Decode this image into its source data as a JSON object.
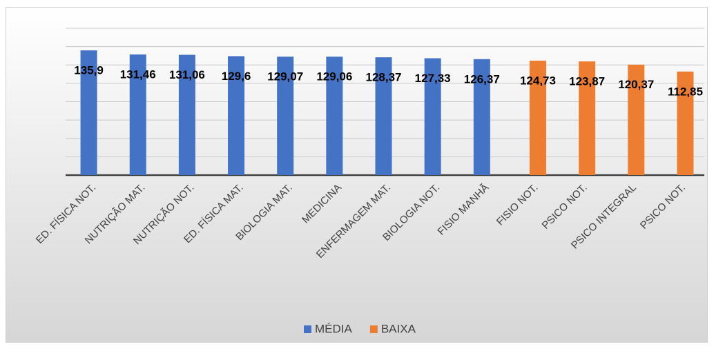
{
  "chart_data": {
    "type": "bar",
    "categories": [
      "ED. FÍSICA NOT.",
      "NUTRIÇÃO MAT.",
      "NUTRIÇÃO NOT.",
      "ED. FÍSICA MAT.",
      "BIOLOGIA MAT.",
      "MEDICINA",
      "ENFERMAGEM MAT.",
      "BIOLOGIA NOT.",
      "FISIO MANHÃ",
      "FISIO NOT.",
      "PSICO NOT.",
      "PSICO INTEGRAL",
      "PSICO NOT."
    ],
    "series": [
      {
        "name": "MÉDIA",
        "color": "#4472c4",
        "values": [
          135.9,
          131.46,
          131.06,
          129.6,
          129.07,
          129.06,
          128.37,
          127.33,
          126.37,
          null,
          null,
          null,
          null
        ],
        "value_labels": [
          "135,9",
          "131,46",
          "131,06",
          "129,6",
          "129,07",
          "129,06",
          "128,37",
          "127,33",
          "126,37",
          null,
          null,
          null,
          null
        ]
      },
      {
        "name": "BAIXA",
        "color": "#ed7d31",
        "values": [
          null,
          null,
          null,
          null,
          null,
          null,
          null,
          null,
          null,
          124.73,
          123.87,
          120.37,
          112.85
        ],
        "value_labels": [
          null,
          null,
          null,
          null,
          null,
          null,
          null,
          null,
          null,
          "124,73",
          "123,87",
          "120,37",
          "112,85"
        ]
      }
    ],
    "ylim": [
      0,
      160
    ],
    "yticks": [
      0,
      20,
      40,
      60,
      80,
      100,
      120,
      140,
      160
    ],
    "ytick_labels": false,
    "grid": true,
    "legend": "bottom"
  }
}
